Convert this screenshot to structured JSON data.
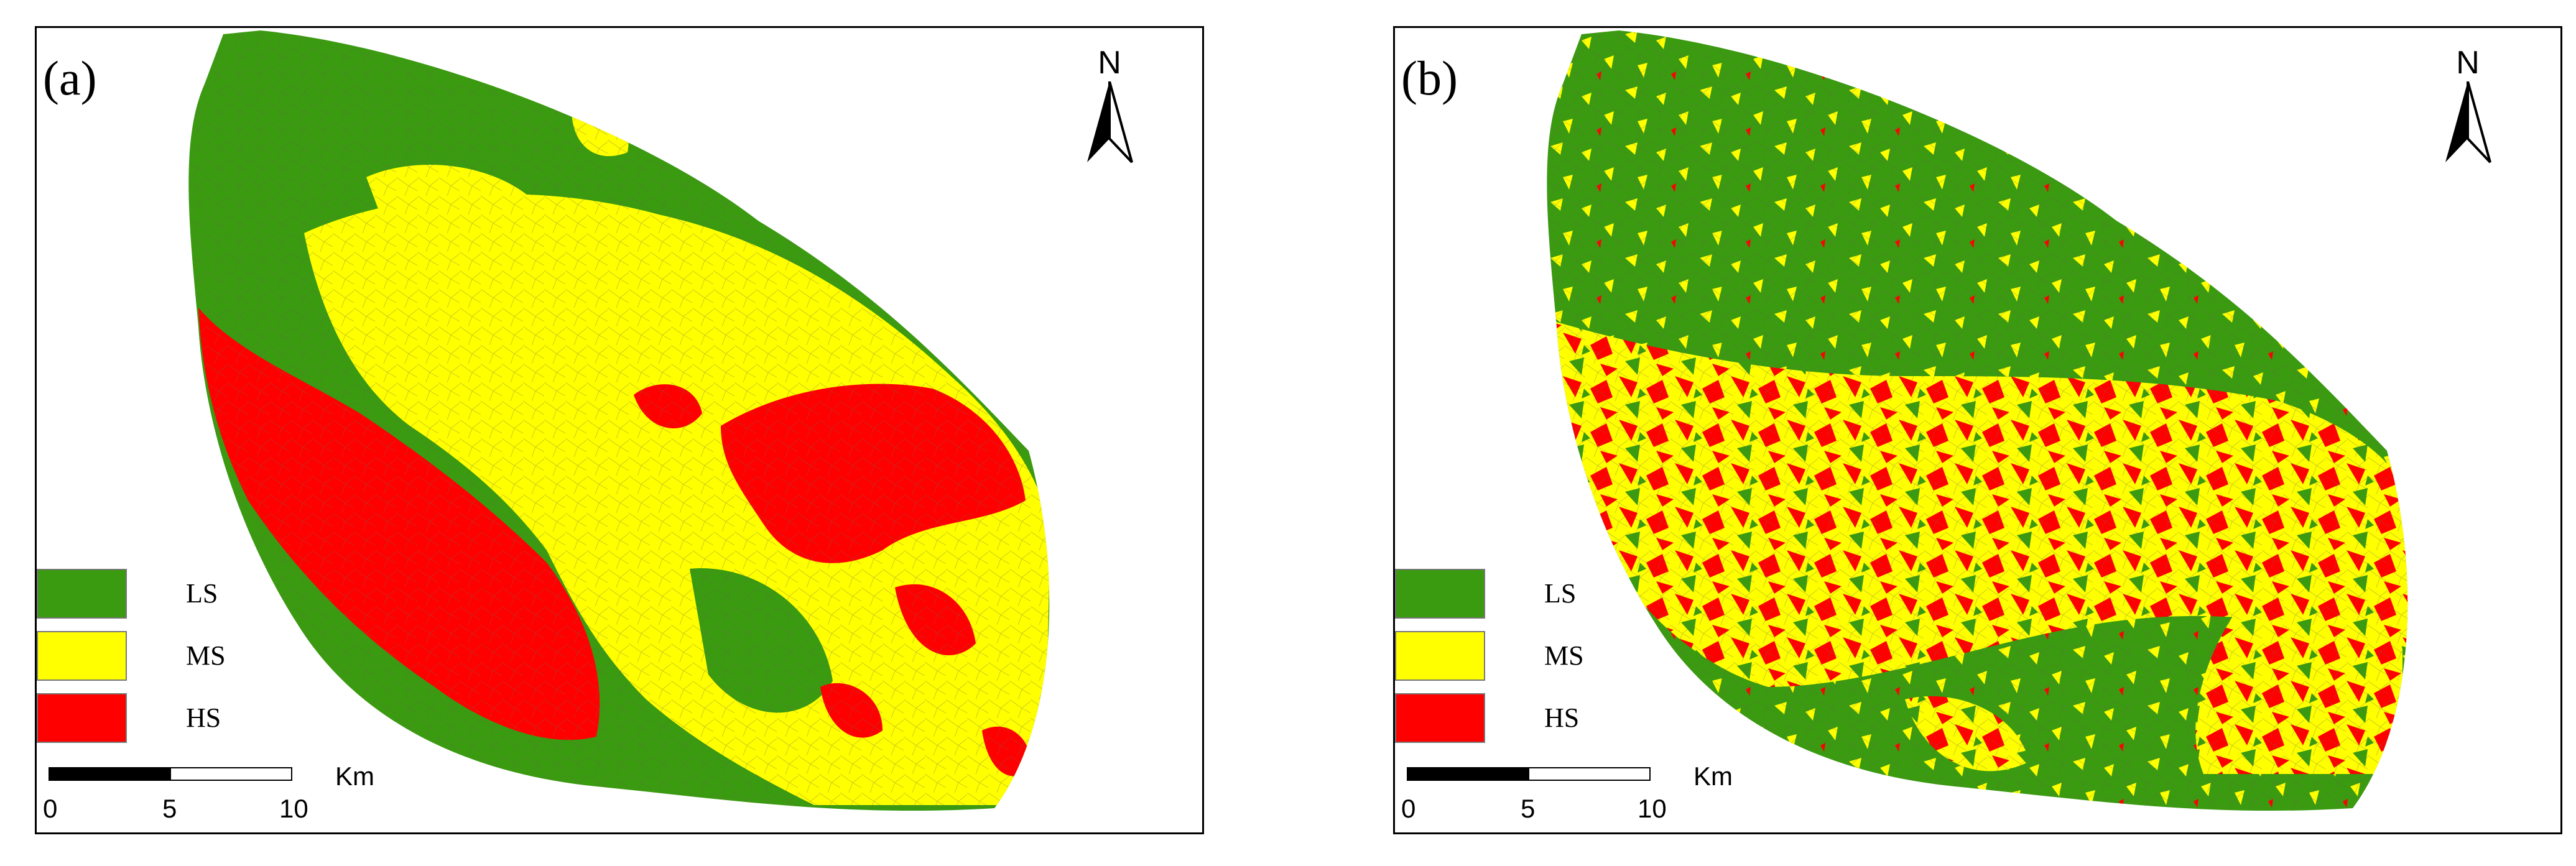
{
  "colors": {
    "ls": "#3a9a10",
    "ms": "#ffff00",
    "hs": "#ff0000",
    "outline": "#9a9a50",
    "frame": "#000000"
  },
  "panels": [
    {
      "label": "(a)",
      "north": "N",
      "legend": [
        {
          "label": "LS"
        },
        {
          "label": "MS"
        },
        {
          "label": "HS"
        }
      ],
      "scale": {
        "unit": "Km",
        "ticks": [
          "0",
          "5",
          "10"
        ]
      }
    },
    {
      "label": "(b)",
      "north": "N",
      "legend": [
        {
          "label": "LS"
        },
        {
          "label": "MS"
        },
        {
          "label": "HS"
        }
      ],
      "scale": {
        "unit": "Km",
        "ticks": [
          "0",
          "5",
          "10"
        ]
      }
    }
  ]
}
